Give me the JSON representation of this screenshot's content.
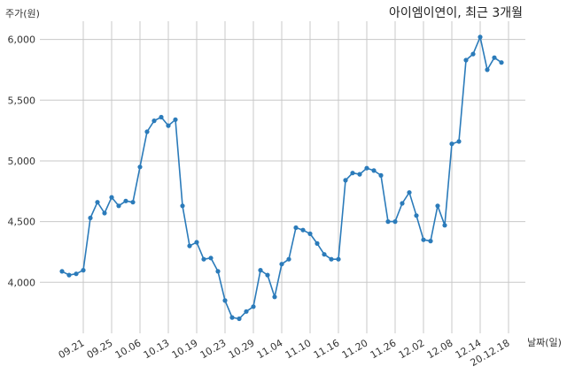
{
  "chart_data": {
    "type": "line",
    "title": "아이엠이연이, 최근 3개월",
    "ylabel": "주가(원)",
    "xlabel": "날짜(일)",
    "ylim": [
      3580,
      6150
    ],
    "y_ticks": [
      4000,
      4500,
      5000,
      5500,
      6000
    ],
    "y_tick_labels": [
      "4,000",
      "4,500",
      "5,000",
      "5,500",
      "6,000"
    ],
    "x_tick_labels": [
      "09.21",
      "09.25",
      "10.06",
      "10.13",
      "10.19",
      "10.23",
      "10.29",
      "11.04",
      "11.10",
      "11.16",
      "11.20",
      "11.26",
      "12.02",
      "12.08",
      "12.14",
      "20.12.18"
    ],
    "x_tick_index": [
      3,
      7,
      11,
      15,
      19,
      23,
      27,
      31,
      35,
      39,
      43,
      47,
      51,
      55,
      59,
      63
    ],
    "grid": true,
    "line_color": "#2b7bba",
    "series": [
      {
        "values": [
          4090,
          4060,
          4070,
          4100,
          4530,
          4660,
          4570,
          4700,
          4630,
          4670,
          4660,
          4950,
          5240,
          5330,
          5360,
          5290,
          5340,
          4630,
          4300,
          4330,
          4190,
          4200,
          4090,
          3850,
          3710,
          3700,
          3760,
          3800,
          4100,
          4060,
          3880,
          4150,
          4190,
          4450,
          4430,
          4400,
          4320,
          4230,
          4190,
          4190,
          4840,
          4900,
          4890,
          4940,
          4920,
          4880,
          4500,
          4500,
          4650,
          4740,
          4550,
          4350,
          4340,
          4630,
          4470,
          5140,
          5160,
          5830,
          5880,
          6020,
          5750,
          5850,
          5810
        ]
      }
    ]
  }
}
